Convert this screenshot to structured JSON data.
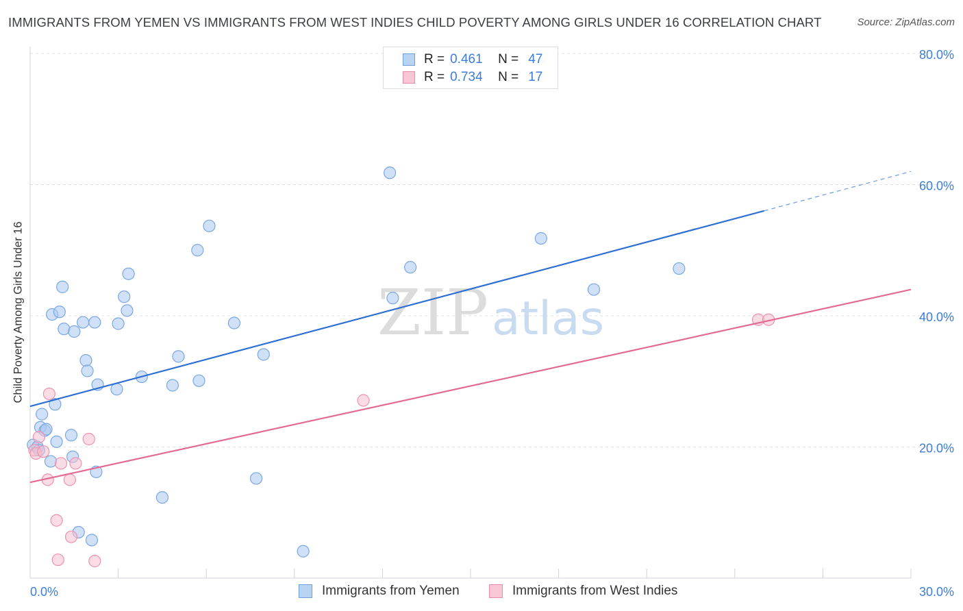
{
  "title": "IMMIGRANTS FROM YEMEN VS IMMIGRANTS FROM WEST INDIES CHILD POVERTY AMONG GIRLS UNDER 16 CORRELATION CHART",
  "source": "Source: ZipAtlas.com",
  "watermark": {
    "zip": "ZIP",
    "atlas": "atlas"
  },
  "colors": {
    "blue_fill": "#a9c8f0",
    "blue_stroke": "#7aa7e3",
    "blue_line": "#2d6fd2",
    "pink_fill": "#f6bfd0",
    "pink_stroke": "#ec93ae",
    "pink_line": "#e36a94",
    "accent_text": "#3b7dd8",
    "grid": "#dfe2e6"
  },
  "legend": {
    "rows": [
      {
        "r_label": "R =",
        "r_value": "0.461",
        "n_label": "N =",
        "n_value": "47"
      },
      {
        "r_label": "R =",
        "r_value": "0.734",
        "n_label": "N =",
        "n_value": "17"
      }
    ]
  },
  "bottom_legend": [
    "Immigrants from Yemen",
    "Immigrants from West Indies"
  ],
  "chart_data": {
    "type": "scatter",
    "title": "IMMIGRANTS FROM YEMEN VS IMMIGRANTS FROM WEST INDIES CHILD POVERTY AMONG GIRLS UNDER 16 CORRELATION CHART",
    "xlabel": "",
    "ylabel": "Child Poverty Among Girls Under 16",
    "xlim": [
      0,
      30
    ],
    "ylim": [
      0,
      80
    ],
    "x_tick_labels": [
      "0.0%",
      "30.0%"
    ],
    "y_tick_values": [
      20,
      40,
      60,
      80
    ],
    "y_tick_labels": [
      "20.0%",
      "40.0%",
      "60.0%",
      "80.0%"
    ],
    "grid": true,
    "series": [
      {
        "name": "Immigrants from Yemen",
        "color": "blue",
        "r": 0.461,
        "n": 47,
        "trend": {
          "x_start": 0,
          "y_start": 26.2,
          "x_solid_end": 25,
          "y_solid_end": 56.0,
          "x_end": 30,
          "y_end": 62.0
        },
        "points": [
          [
            0.1,
            20.3
          ],
          [
            0.25,
            20.0
          ],
          [
            0.3,
            19.5
          ],
          [
            0.35,
            23.0
          ],
          [
            0.4,
            25.0
          ],
          [
            0.5,
            22.5
          ],
          [
            0.55,
            22.7
          ],
          [
            0.7,
            17.8
          ],
          [
            0.75,
            40.2
          ],
          [
            0.85,
            26.5
          ],
          [
            0.9,
            20.8
          ],
          [
            1.0,
            40.6
          ],
          [
            1.1,
            44.4
          ],
          [
            1.15,
            38.0
          ],
          [
            1.4,
            21.8
          ],
          [
            1.45,
            18.5
          ],
          [
            1.5,
            37.6
          ],
          [
            1.65,
            7.0
          ],
          [
            1.8,
            39.0
          ],
          [
            1.9,
            33.2
          ],
          [
            1.95,
            31.6
          ],
          [
            2.1,
            5.8
          ],
          [
            2.2,
            39.0
          ],
          [
            2.25,
            16.2
          ],
          [
            2.3,
            29.5
          ],
          [
            2.95,
            28.8
          ],
          [
            3.0,
            38.8
          ],
          [
            3.2,
            42.9
          ],
          [
            3.3,
            40.8
          ],
          [
            3.35,
            46.4
          ],
          [
            3.8,
            30.7
          ],
          [
            4.5,
            12.3
          ],
          [
            4.85,
            29.4
          ],
          [
            5.05,
            33.8
          ],
          [
            5.7,
            50.0
          ],
          [
            5.75,
            30.1
          ],
          [
            6.1,
            53.7
          ],
          [
            6.95,
            38.9
          ],
          [
            7.7,
            15.2
          ],
          [
            7.95,
            34.1
          ],
          [
            9.3,
            4.1
          ],
          [
            12.25,
            61.8
          ],
          [
            12.35,
            42.7
          ],
          [
            12.95,
            47.4
          ],
          [
            17.4,
            51.8
          ],
          [
            19.2,
            44.0
          ],
          [
            22.1,
            47.2
          ]
        ]
      },
      {
        "name": "Immigrants from West Indies",
        "color": "pink",
        "r": 0.734,
        "n": 17,
        "trend": {
          "x_start": 0,
          "y_start": 14.6,
          "x_end": 30,
          "y_end": 44.0
        },
        "points": [
          [
            0.15,
            19.5
          ],
          [
            0.2,
            19.0
          ],
          [
            0.3,
            21.5
          ],
          [
            0.45,
            19.3
          ],
          [
            0.6,
            15.0
          ],
          [
            0.65,
            28.1
          ],
          [
            0.9,
            8.8
          ],
          [
            0.95,
            2.8
          ],
          [
            1.05,
            17.5
          ],
          [
            1.35,
            15.0
          ],
          [
            1.4,
            6.3
          ],
          [
            1.55,
            17.5
          ],
          [
            2.2,
            2.6
          ],
          [
            2.0,
            21.2
          ],
          [
            11.35,
            27.1
          ],
          [
            24.8,
            39.4
          ],
          [
            25.15,
            39.4
          ]
        ]
      }
    ]
  }
}
